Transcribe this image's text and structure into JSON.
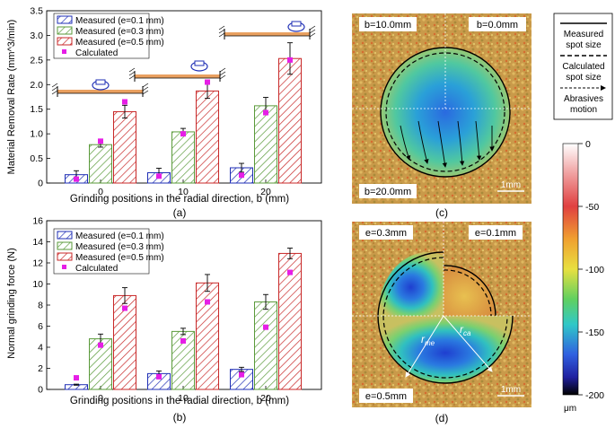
{
  "colors": {
    "measured_01": "#1f2fb5",
    "measured_03": "#5a9a3a",
    "measured_05": "#c82828",
    "calculated": "#e61ee6",
    "axis": "#000000",
    "beam": "#e9a060"
  },
  "chart_data": [
    {
      "id": "a",
      "type": "bar",
      "panel_label": "(a)",
      "ylabel": "Material Removal Rate (mm^3/min)",
      "xlabel": "Grinding positions in the radial direction, b (mm)",
      "categories": [
        "0",
        "10",
        "20"
      ],
      "ylim": [
        0,
        3.5
      ],
      "yticks": [
        "0",
        "0.5",
        "1.0",
        "1.5",
        "2.0",
        "2.5",
        "3.0",
        "3.5"
      ],
      "yticks_values": [
        0,
        0.5,
        1.0,
        1.5,
        2.0,
        2.5,
        3.0,
        3.5
      ],
      "legend_placement": "top-left",
      "series": [
        {
          "name": "Measured (e=0.1 mm)",
          "values": [
            0.17,
            0.21,
            0.31
          ],
          "errors": [
            0.08,
            0.09,
            0.09
          ]
        },
        {
          "name": "Measured (e=0.3 mm)",
          "values": [
            0.78,
            1.04,
            1.57
          ],
          "errors": [
            0.05,
            0.07,
            0.17
          ]
        },
        {
          "name": "Measured (e=0.5 mm)",
          "values": [
            1.45,
            1.87,
            2.53
          ],
          "errors": [
            0.13,
            0.15,
            0.32
          ]
        }
      ],
      "calculated": {
        "name": "Calculated",
        "values": [
          [
            0.08,
            0.85,
            1.65
          ],
          [
            0.14,
            1.0,
            2.05
          ],
          [
            0.16,
            1.43,
            2.5
          ]
        ]
      }
    },
    {
      "id": "b",
      "type": "bar",
      "panel_label": "(b)",
      "ylabel": "Normal grinding force (N)",
      "xlabel": "Grinding positions in the radial direction, b (mm)",
      "categories": [
        "0",
        "10",
        "20"
      ],
      "ylim": [
        0,
        16
      ],
      "yticks": [
        "0",
        "2",
        "4",
        "6",
        "8",
        "10",
        "12",
        "14",
        "16"
      ],
      "yticks_values": [
        0,
        2,
        4,
        6,
        8,
        10,
        12,
        14,
        16
      ],
      "legend_placement": "top-left",
      "series": [
        {
          "name": "Measured (e=0.1 mm)",
          "values": [
            0.45,
            1.5,
            1.9
          ],
          "errors": [
            0.05,
            0.25,
            0.2
          ]
        },
        {
          "name": "Measured (e=0.3 mm)",
          "values": [
            4.8,
            5.5,
            8.3
          ],
          "errors": [
            0.45,
            0.3,
            0.7
          ]
        },
        {
          "name": "Measured (e=0.5 mm)",
          "values": [
            8.9,
            10.1,
            12.9
          ],
          "errors": [
            0.75,
            0.8,
            0.5
          ]
        }
      ],
      "calculated": {
        "name": "Calculated",
        "values": [
          [
            1.1,
            4.2,
            7.7
          ],
          [
            1.2,
            4.6,
            8.3
          ],
          [
            1.4,
            5.9,
            11.1
          ]
        ]
      }
    }
  ],
  "panel_c": {
    "label": "(c)",
    "quadrant_labels": [
      "b=10.0mm",
      "b=0.0mm",
      "b=20.0mm"
    ],
    "scale_bar": "1mm"
  },
  "panel_d": {
    "label": "(d)",
    "quadrant_labels": [
      "e=0.3mm",
      "e=0.1mm",
      "e=0.5mm"
    ],
    "scale_bar": "1mm",
    "radius_labels": [
      "r",
      "ca",
      "r",
      "me"
    ]
  },
  "legend_right": {
    "items": [
      "Measured spot size",
      "Calculated spot size",
      "Abrasives motion"
    ],
    "item_lines": [
      [
        "Measured",
        "spot size"
      ],
      [
        "Calculated",
        "spot size"
      ],
      [
        "Abrasives",
        "motion"
      ]
    ]
  },
  "colorbar": {
    "ticks": [
      "0",
      "-50",
      "-100",
      "-150",
      "-200"
    ],
    "tick_values": [
      0,
      -50,
      -100,
      -150,
      -200
    ],
    "unit": "μm"
  }
}
